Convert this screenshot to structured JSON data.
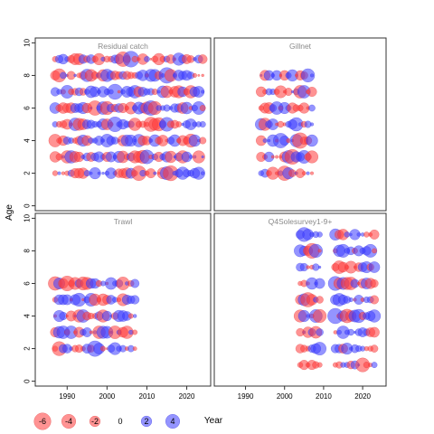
{
  "chart_data": {
    "type": "scatter",
    "xlabel": "Year",
    "ylabel": "Age",
    "xlim": [
      1982,
      2026
    ],
    "ylim": [
      -0.3,
      10.3
    ],
    "x_ticks": [
      1990,
      2000,
      2010,
      2020
    ],
    "y_ticks": [
      0,
      2,
      4,
      6,
      8,
      10
    ],
    "marker_colors": {
      "negative": "#ff3b3b",
      "positive": "#3c3cff"
    },
    "legend": {
      "placement": "bottom-left",
      "entries": [
        {
          "label": "-6",
          "value": -6
        },
        {
          "label": "-4",
          "value": -4
        },
        {
          "label": "-2",
          "value": -2
        },
        {
          "label": "0",
          "value": 0
        },
        {
          "label": "2",
          "value": 2
        },
        {
          "label": "4",
          "value": 4
        }
      ]
    },
    "panels": [
      {
        "title": "Residual catch",
        "years": [
          1987,
          2024
        ],
        "ages": [
          2,
          3,
          4,
          5,
          6,
          7,
          8,
          9
        ],
        "seed": 11
      },
      {
        "title": "Gillnet",
        "years": [
          1994,
          2007
        ],
        "ages": [
          2,
          3,
          4,
          5,
          6,
          7,
          8
        ],
        "seed": 23
      },
      {
        "title": "Trawl",
        "years": [
          1987,
          2007
        ],
        "ages": [
          2,
          3,
          4,
          5,
          6
        ],
        "seed": 37
      },
      {
        "title": "Q4Solesurvey1-9+",
        "years": [
          2004,
          2023
        ],
        "ages": [
          1,
          2,
          3,
          4,
          5,
          6,
          7,
          8,
          9
        ],
        "gap_years": [
          2010,
          2011,
          2012
        ],
        "seed": 53
      }
    ]
  }
}
